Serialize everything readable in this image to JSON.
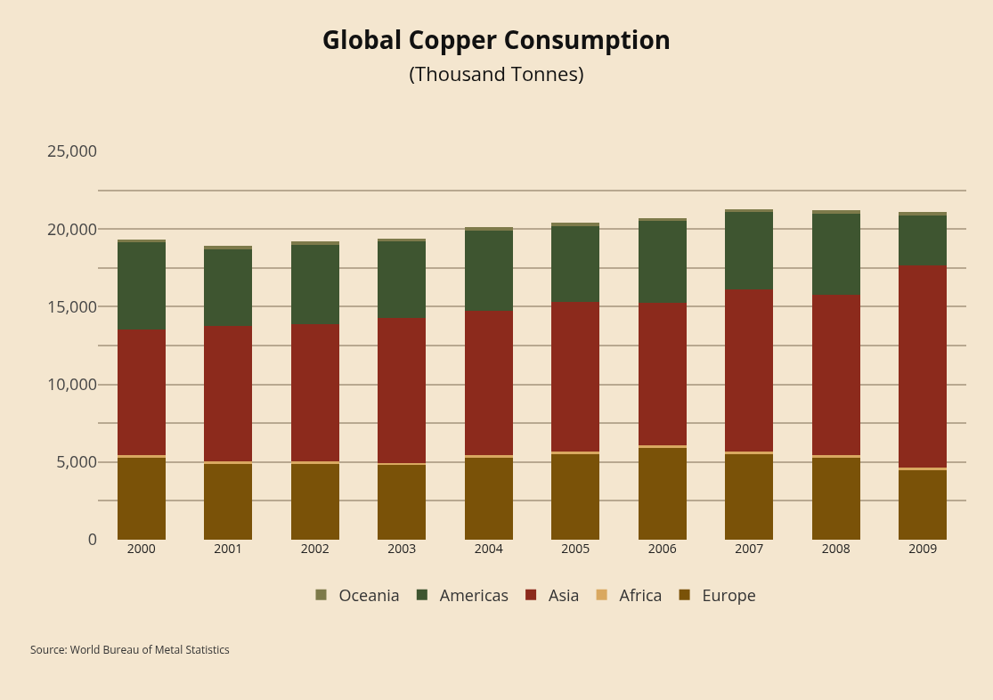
{
  "chart_data": {
    "type": "bar",
    "title": "Global Copper Consumption",
    "subtitle": "(Thousand Tonnes)",
    "categories": [
      "2000",
      "2001",
      "2002",
      "2003",
      "2004",
      "2005",
      "2006",
      "2007",
      "2008",
      "2009"
    ],
    "stacked": true,
    "series": [
      {
        "name": "Europe",
        "color": "#7a5208",
        "values": [
          5300,
          4900,
          4900,
          4800,
          5300,
          5500,
          5900,
          5500,
          5300,
          4500
        ]
      },
      {
        "name": "Africa",
        "color": "#d9a860",
        "values": [
          150,
          150,
          150,
          150,
          150,
          150,
          150,
          150,
          150,
          150
        ]
      },
      {
        "name": "Asia",
        "color": "#8c2a1c",
        "values": [
          8100,
          8700,
          8800,
          9300,
          9300,
          9650,
          9200,
          10450,
          10300,
          13000
        ]
      },
      {
        "name": "Americas",
        "color": "#3e5530",
        "values": [
          5600,
          4950,
          5150,
          4950,
          5150,
          4900,
          5250,
          5000,
          5250,
          3250
        ]
      },
      {
        "name": "Oceania",
        "color": "#7d7a4a",
        "values": [
          200,
          200,
          200,
          200,
          200,
          200,
          200,
          200,
          200,
          200
        ]
      }
    ],
    "ylim": [
      0,
      25000
    ],
    "yticks": [
      {
        "value": 0,
        "label": "0"
      },
      {
        "value": 2500,
        "label": null
      },
      {
        "value": 5000,
        "label": "5,000"
      },
      {
        "value": 7500,
        "label": null
      },
      {
        "value": 10000,
        "label": "10,000"
      },
      {
        "value": 12500,
        "label": null
      },
      {
        "value": 15000,
        "label": "15,000"
      },
      {
        "value": 17500,
        "label": null
      },
      {
        "value": 20000,
        "label": "20,000"
      },
      {
        "value": 22500,
        "label": null
      },
      {
        "value": 25000,
        "label": "25,000"
      }
    ],
    "grid": "y",
    "legend": "bottom",
    "annotations": [
      "Source: World Bureau of Metal Statistics"
    ]
  }
}
